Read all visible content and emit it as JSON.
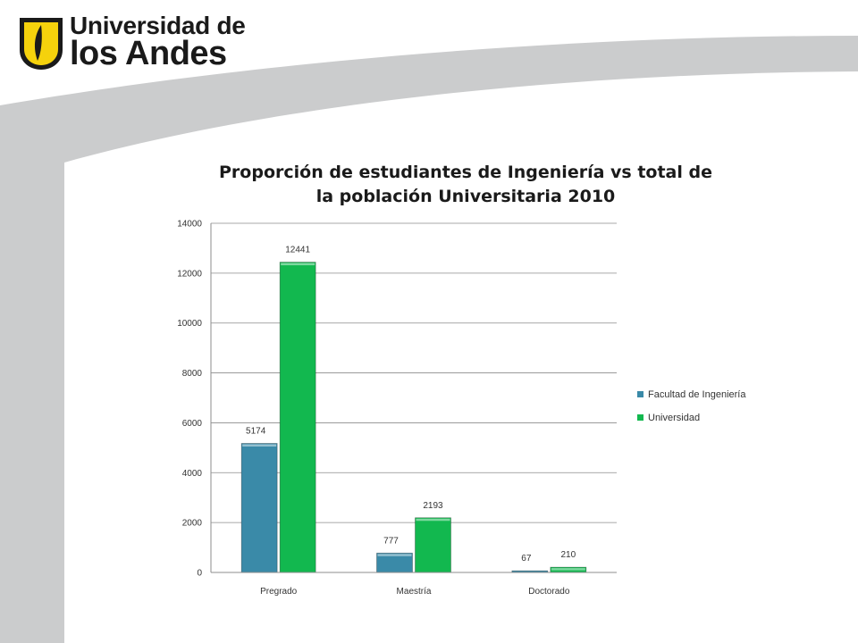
{
  "logo": {
    "line1": "Universidad de",
    "line2": "los Andes",
    "icon": "university-shield-logo"
  },
  "colors": {
    "banner_gray": "#cbcccd",
    "series1": "#3a8aa8",
    "series2": "#12b84f",
    "logo_yellow": "#f5d20c"
  },
  "chart_data": {
    "type": "bar",
    "title": "Proporción de estudiantes de Ingeniería vs total de la población Universitaria 2010",
    "title_lines": [
      "Proporción de estudiantes de Ingeniería vs total de",
      "la población Universitaria 2010"
    ],
    "categories": [
      "Pregrado",
      "Maestría",
      "Doctorado"
    ],
    "series": [
      {
        "name": "Facultad de Ingeniería",
        "values": [
          5174,
          777,
          67
        ],
        "color": "#3a8aa8"
      },
      {
        "name": "Universidad",
        "values": [
          12441,
          2193,
          210
        ],
        "color": "#12b84f"
      }
    ],
    "ylim": [
      0,
      14000
    ],
    "yticks": [
      0,
      2000,
      4000,
      6000,
      8000,
      10000,
      12000,
      14000
    ],
    "xlabel": "",
    "ylabel": "",
    "grid": true,
    "legend_position": "right"
  }
}
